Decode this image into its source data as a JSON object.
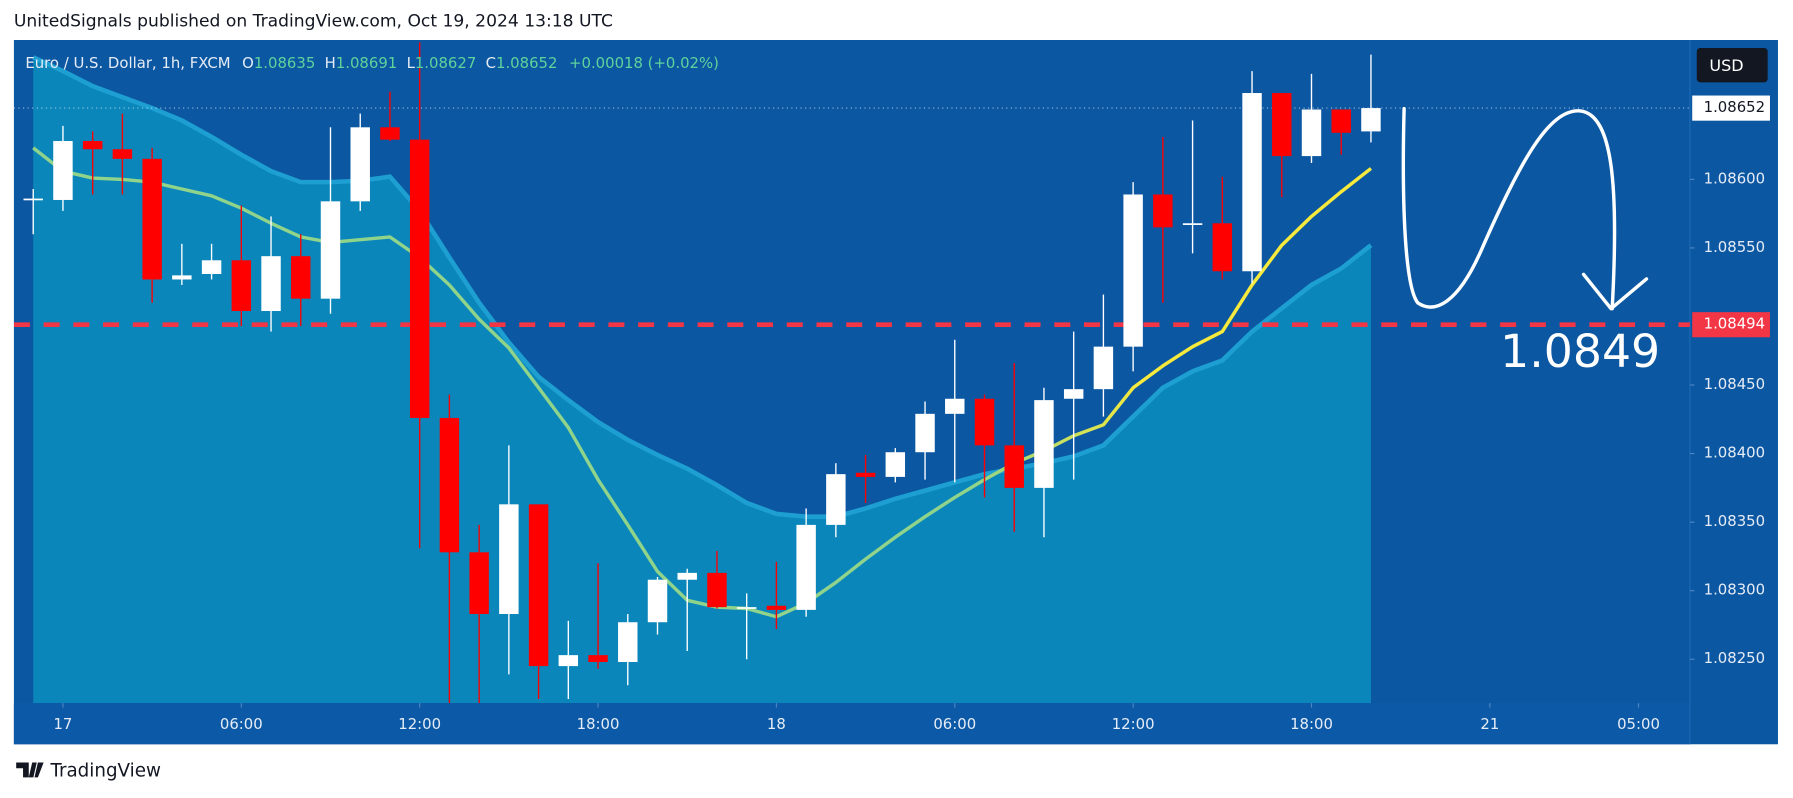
{
  "header": "UnitedSignals published on TradingView.com, Oct 19, 2024 13:18 UTC",
  "footer": "TradingView",
  "chart_data": {
    "type": "candlestick",
    "legend": {
      "symbol": "Euro / U.S. Dollar, 1h, FXCM",
      "open_label": "O",
      "high_label": "H",
      "low_label": "L",
      "close_label": "C",
      "change": "+0.00018 (+0.02%)"
    },
    "currency": "USD",
    "up_color": "#ffffff",
    "down_color": "#ff0000",
    "candles": {
      "open": [
        1.08585,
        1.08585,
        1.08628,
        1.08622,
        1.08615,
        1.08527,
        1.08531,
        1.08541,
        1.08504,
        1.08544,
        1.08513,
        1.08584,
        1.08638,
        1.08629,
        1.08426,
        1.08328,
        1.08283,
        1.08363,
        1.08245,
        1.08253,
        1.08248,
        1.08277,
        1.08308,
        1.08313,
        1.08288,
        1.08289,
        1.08286,
        1.08348,
        1.08386,
        1.08383,
        1.08401,
        1.08429,
        1.0844,
        1.08406,
        1.08375,
        1.0844,
        1.08447,
        1.08478,
        1.08589,
        1.08567,
        1.08568,
        1.08533,
        1.08663,
        1.08617,
        1.08651,
        1.08635
      ],
      "high": [
        1.08593,
        1.08639,
        1.08635,
        1.08648,
        1.08623,
        1.08553,
        1.08553,
        1.08581,
        1.08573,
        1.0856,
        1.08638,
        1.08648,
        1.08664,
        1.087,
        1.08443,
        1.08348,
        1.08406,
        1.08363,
        1.08278,
        1.0832,
        1.08283,
        1.0831,
        1.08316,
        1.08329,
        1.08298,
        1.08321,
        1.0836,
        1.08393,
        1.08399,
        1.08404,
        1.08438,
        1.08483,
        1.08443,
        1.08466,
        1.08448,
        1.08489,
        1.08516,
        1.08598,
        1.08631,
        1.08643,
        1.08602,
        1.08679,
        1.08663,
        1.08677,
        1.08651,
        1.08691
      ],
      "low": [
        1.0856,
        1.08577,
        1.08589,
        1.08589,
        1.0851,
        1.08523,
        1.08527,
        1.08493,
        1.08489,
        1.08493,
        1.08502,
        1.08577,
        1.08628,
        1.08331,
        1.08218,
        1.08218,
        1.08239,
        1.08221,
        1.08221,
        1.08243,
        1.08231,
        1.08268,
        1.08256,
        1.08287,
        1.0825,
        1.08272,
        1.08281,
        1.08339,
        1.08364,
        1.08379,
        1.08381,
        1.08379,
        1.08368,
        1.08343,
        1.08339,
        1.08381,
        1.08427,
        1.0846,
        1.0851,
        1.08546,
        1.08527,
        1.08524,
        1.08587,
        1.08612,
        1.08618,
        1.08627
      ],
      "close": [
        1.08586,
        1.08628,
        1.08622,
        1.08615,
        1.08527,
        1.0853,
        1.08541,
        1.08504,
        1.08544,
        1.08513,
        1.08584,
        1.08638,
        1.08629,
        1.08426,
        1.08328,
        1.08283,
        1.08363,
        1.08245,
        1.08253,
        1.08248,
        1.08277,
        1.08308,
        1.08313,
        1.08288,
        1.08288,
        1.08286,
        1.08348,
        1.08385,
        1.08383,
        1.08401,
        1.08429,
        1.0844,
        1.08406,
        1.08375,
        1.08439,
        1.08447,
        1.08478,
        1.08589,
        1.08565,
        1.08568,
        1.08533,
        1.08663,
        1.08617,
        1.08651,
        1.08634,
        1.08652
      ]
    },
    "moving_average": {
      "colors": [
        "#8fd48a",
        "#f7ea3c"
      ],
      "values": [
        1.08623,
        1.08606,
        1.08601,
        1.086,
        1.08598,
        1.08593,
        1.08588,
        1.08579,
        1.08568,
        1.08558,
        1.08554,
        1.08556,
        1.08558,
        1.08543,
        1.08523,
        1.08498,
        1.08477,
        1.08448,
        1.08419,
        1.08381,
        1.08348,
        1.08314,
        1.08293,
        1.08288,
        1.08287,
        1.08281,
        1.08291,
        1.08306,
        1.08323,
        1.08339,
        1.08354,
        1.08368,
        1.08381,
        1.08393,
        1.08402,
        1.08413,
        1.08421,
        1.08448,
        1.08464,
        1.08478,
        1.08489,
        1.08523,
        1.08552,
        1.08573,
        1.08591,
        1.08608
      ]
    },
    "band": {
      "color": "#0a86ba",
      "line_color": "#1d9fd2",
      "values": [
        1.08689,
        1.08679,
        1.08668,
        1.0866,
        1.08652,
        1.08643,
        1.08631,
        1.08618,
        1.08606,
        1.08598,
        1.08598,
        1.08599,
        1.08602,
        1.08577,
        1.08543,
        1.0851,
        1.08481,
        1.08456,
        1.08439,
        1.08423,
        1.0841,
        1.08399,
        1.08389,
        1.08377,
        1.08364,
        1.08356,
        1.08354,
        1.08354,
        1.0836,
        1.08367,
        1.08373,
        1.08379,
        1.08385,
        1.08389,
        1.08393,
        1.08398,
        1.08406,
        1.08427,
        1.08448,
        1.0846,
        1.08468,
        1.08489,
        1.08506,
        1.08523,
        1.08535,
        1.08552
      ]
    },
    "level": {
      "value": 1.08494,
      "color": "#f23645"
    },
    "annotation": "1.0849",
    "xlim": [
      -0.65,
      55.73
    ],
    "xticks": [
      {
        "value": 1,
        "label": "17"
      },
      {
        "value": 7,
        "label": "06:00"
      },
      {
        "value": 13,
        "label": "12:00"
      },
      {
        "value": 19,
        "label": "18:00"
      },
      {
        "value": 25,
        "label": "18"
      },
      {
        "value": 31,
        "label": "06:00"
      },
      {
        "value": 37,
        "label": "12:00"
      },
      {
        "value": 43,
        "label": "18:00"
      },
      {
        "value": 49,
        "label": "21"
      },
      {
        "value": 54,
        "label": "05:00"
      }
    ],
    "ylim": [
      1.08218,
      1.087
    ],
    "yticks": [
      {
        "value": 1.0825,
        "label": "1.08250"
      },
      {
        "value": 1.083,
        "label": "1.08300"
      },
      {
        "value": 1.0835,
        "label": "1.08350"
      },
      {
        "value": 1.084,
        "label": "1.08400"
      },
      {
        "value": 1.0845,
        "label": "1.08450"
      },
      {
        "value": 1.0855,
        "label": "1.08550"
      },
      {
        "value": 1.086,
        "label": "1.08600"
      }
    ]
  }
}
